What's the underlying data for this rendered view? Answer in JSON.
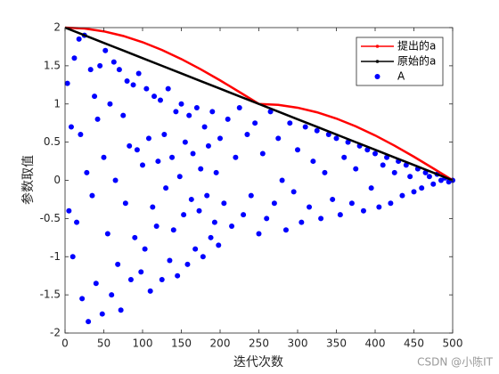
{
  "chart_data": {
    "type": "scatter-line",
    "xlabel": "迭代次数",
    "ylabel": "参数取值",
    "watermark": "CSDN @小陈IT",
    "xlim": [
      0,
      500
    ],
    "ylim": [
      -2,
      2
    ],
    "xticks": [
      0,
      50,
      100,
      150,
      200,
      250,
      300,
      350,
      400,
      450,
      500
    ],
    "yticks": [
      -2,
      -1.5,
      -1,
      -0.5,
      0,
      0.5,
      1,
      1.5,
      2
    ],
    "legend": "upper right",
    "lines": [
      {
        "name": "提出的a",
        "color": "#ff0000",
        "x": [
          0,
          25,
          50,
          75,
          100,
          125,
          150,
          175,
          200,
          225,
          250,
          275,
          300,
          325,
          350,
          375,
          400,
          425,
          450,
          475,
          500
        ],
        "values": [
          2,
          1.988,
          1.951,
          1.891,
          1.809,
          1.707,
          1.588,
          1.454,
          1.309,
          1.156,
          1.0,
          0.988,
          0.951,
          0.891,
          0.809,
          0.707,
          0.588,
          0.454,
          0.309,
          0.156,
          0
        ]
      },
      {
        "name": "原始的a",
        "color": "#000000",
        "x": [
          0,
          25,
          50,
          75,
          100,
          125,
          150,
          175,
          200,
          225,
          250,
          275,
          300,
          325,
          350,
          375,
          400,
          425,
          450,
          475,
          500
        ],
        "values": [
          2,
          1.9,
          1.8,
          1.7,
          1.6,
          1.5,
          1.4,
          1.3,
          1.2,
          1.1,
          1.0,
          0.9,
          0.8,
          0.7,
          0.6,
          0.5,
          0.4,
          0.3,
          0.2,
          0.1,
          0
        ]
      }
    ],
    "scatter": {
      "name": "A",
      "color": "#0000ff",
      "x": [
        3,
        5,
        8,
        10,
        12,
        15,
        18,
        20,
        22,
        25,
        28,
        30,
        33,
        35,
        38,
        40,
        42,
        45,
        48,
        50,
        52,
        55,
        58,
        60,
        63,
        65,
        68,
        70,
        72,
        75,
        78,
        80,
        83,
        85,
        88,
        90,
        93,
        95,
        98,
        100,
        103,
        105,
        108,
        110,
        113,
        115,
        118,
        120,
        123,
        125,
        128,
        130,
        133,
        135,
        138,
        140,
        143,
        145,
        148,
        150,
        153,
        155,
        158,
        160,
        163,
        165,
        168,
        170,
        173,
        175,
        178,
        180,
        183,
        185,
        188,
        190,
        193,
        195,
        198,
        200,
        205,
        210,
        215,
        220,
        225,
        230,
        235,
        240,
        245,
        250,
        255,
        260,
        265,
        270,
        275,
        280,
        285,
        290,
        295,
        300,
        305,
        310,
        315,
        320,
        325,
        330,
        335,
        340,
        345,
        350,
        355,
        360,
        365,
        370,
        375,
        380,
        385,
        390,
        395,
        400,
        405,
        410,
        415,
        420,
        425,
        430,
        435,
        440,
        445,
        450,
        455,
        460,
        465,
        470,
        475,
        480,
        485,
        490,
        495,
        500
      ],
      "values": [
        1.27,
        -0.4,
        0.7,
        -1.0,
        1.6,
        -0.55,
        1.85,
        0.6,
        -1.55,
        1.9,
        0.1,
        -1.85,
        1.45,
        -0.2,
        1.1,
        -1.35,
        0.8,
        1.5,
        -1.75,
        0.3,
        1.7,
        -0.7,
        1.0,
        -1.5,
        1.55,
        0.0,
        -1.1,
        1.45,
        -1.7,
        0.85,
        -0.3,
        1.3,
        0.45,
        -1.3,
        1.25,
        -0.75,
        0.4,
        1.4,
        -1.2,
        0.2,
        -0.9,
        1.2,
        0.55,
        -1.45,
        -0.35,
        1.1,
        -0.6,
        0.25,
        1.05,
        -1.3,
        0.6,
        -0.1,
        1.2,
        -1.05,
        0.3,
        -0.65,
        0.9,
        -1.25,
        0.05,
        1.0,
        -0.45,
        0.5,
        -1.1,
        0.85,
        -0.25,
        0.35,
        -0.9,
        0.95,
        -0.4,
        0.15,
        -1.0,
        0.7,
        -0.2,
        0.45,
        -0.75,
        0.9,
        -0.55,
        0.1,
        -0.85,
        0.55,
        -0.3,
        0.8,
        -0.6,
        0.3,
        0.95,
        -0.45,
        0.6,
        -0.2,
        0.75,
        -0.7,
        0.35,
        -0.5,
        0.9,
        -0.3,
        0.55,
        0.0,
        -0.65,
        0.75,
        -0.15,
        0.4,
        -0.55,
        0.7,
        -0.35,
        0.25,
        0.65,
        -0.5,
        0.1,
        0.6,
        -0.25,
        0.55,
        -0.45,
        0.3,
        0.5,
        -0.3,
        0.15,
        0.45,
        -0.4,
        0.4,
        -0.1,
        0.35,
        -0.35,
        0.2,
        0.3,
        -0.3,
        0.1,
        0.25,
        -0.2,
        0.2,
        0.05,
        -0.15,
        0.15,
        -0.1,
        0.1,
        0.05,
        -0.05,
        0.08,
        0.0,
        0.03,
        -0.02,
        0.0
      ]
    }
  }
}
